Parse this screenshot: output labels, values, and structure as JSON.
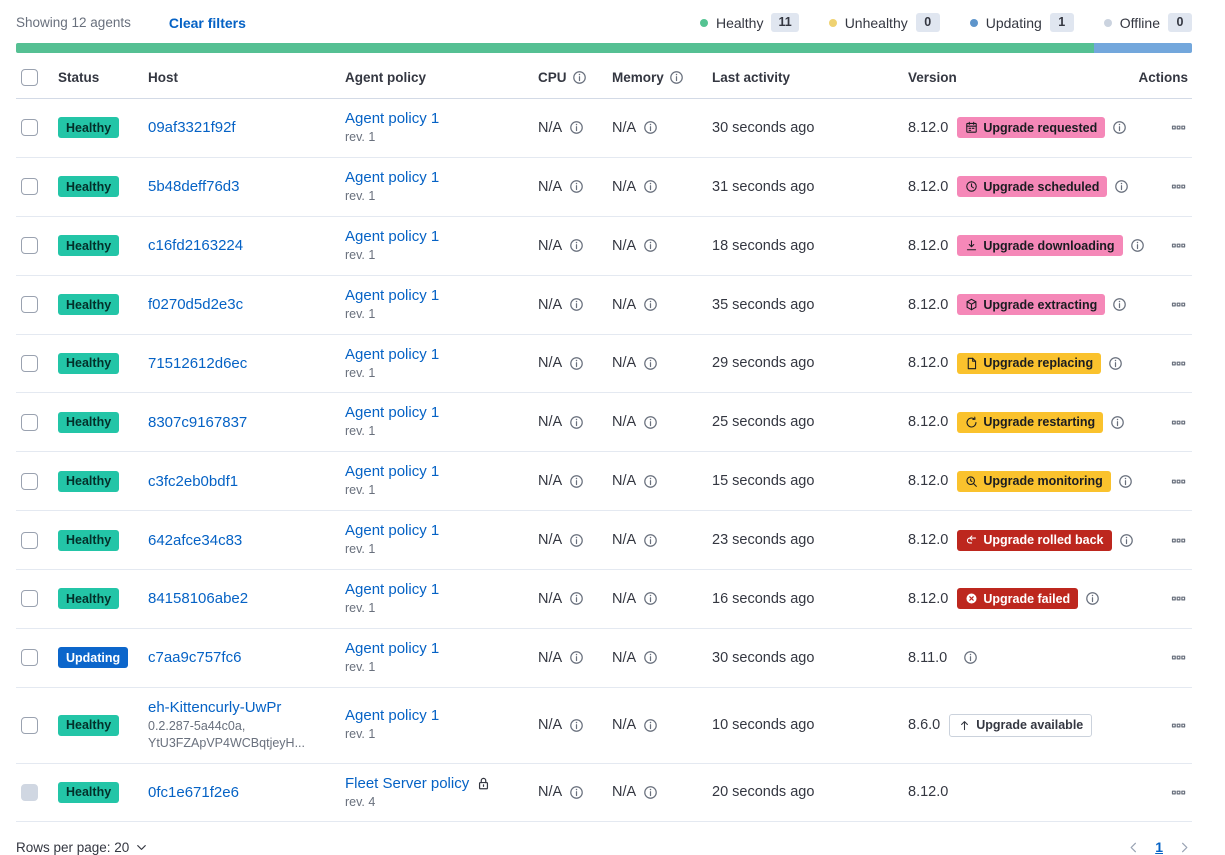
{
  "toolbar": {
    "showing": "Showing 12 agents",
    "clear_filters": "Clear filters",
    "legend": [
      {
        "label": "Healthy",
        "count": "11",
        "dot_color_key": "dot_healthy"
      },
      {
        "label": "Unhealthy",
        "count": "0",
        "dot_color_key": "dot_unhealthy"
      },
      {
        "label": "Updating",
        "count": "1",
        "dot_color_key": "dot_updating"
      },
      {
        "label": "Offline",
        "count": "0",
        "dot_color_key": "dot_offline"
      }
    ]
  },
  "status_bar": {
    "segments": [
      {
        "color_key": "bar_green",
        "fraction": 0.9167
      },
      {
        "color_key": "bar_blue",
        "fraction": 0.0833
      }
    ]
  },
  "table": {
    "headers": {
      "status": "Status",
      "host": "Host",
      "policy": "Agent policy",
      "cpu": "CPU",
      "memory": "Memory",
      "last_activity": "Last activity",
      "version": "Version",
      "actions": "Actions"
    },
    "rows": [
      {
        "status": {
          "label": "Healthy",
          "type": "healthy"
        },
        "host": {
          "name": "09af3321f92f"
        },
        "policy": {
          "name": "Agent policy 1",
          "rev": "rev. 1",
          "locked": false
        },
        "cpu": "N/A",
        "memory": "N/A",
        "last_activity": "30 seconds ago",
        "version": "8.12.0",
        "badge": {
          "label": "Upgrade requested",
          "icon": "calendar-icon",
          "style": "pink"
        },
        "info_after_badge": true,
        "info_after_version": false,
        "checkbox_disabled": false
      },
      {
        "status": {
          "label": "Healthy",
          "type": "healthy"
        },
        "host": {
          "name": "5b48deff76d3"
        },
        "policy": {
          "name": "Agent policy 1",
          "rev": "rev. 1",
          "locked": false
        },
        "cpu": "N/A",
        "memory": "N/A",
        "last_activity": "31 seconds ago",
        "version": "8.12.0",
        "badge": {
          "label": "Upgrade scheduled",
          "icon": "clock-icon",
          "style": "pink"
        },
        "info_after_badge": true,
        "info_after_version": false,
        "checkbox_disabled": false
      },
      {
        "status": {
          "label": "Healthy",
          "type": "healthy"
        },
        "host": {
          "name": "c16fd2163224"
        },
        "policy": {
          "name": "Agent policy 1",
          "rev": "rev. 1",
          "locked": false
        },
        "cpu": "N/A",
        "memory": "N/A",
        "last_activity": "18 seconds ago",
        "version": "8.12.0",
        "badge": {
          "label": "Upgrade downloading",
          "icon": "download-icon",
          "style": "pink"
        },
        "info_after_badge": true,
        "info_after_version": false,
        "checkbox_disabled": false
      },
      {
        "status": {
          "label": "Healthy",
          "type": "healthy"
        },
        "host": {
          "name": "f0270d5d2e3c"
        },
        "policy": {
          "name": "Agent policy 1",
          "rev": "rev. 1",
          "locked": false
        },
        "cpu": "N/A",
        "memory": "N/A",
        "last_activity": "35 seconds ago",
        "version": "8.12.0",
        "badge": {
          "label": "Upgrade extracting",
          "icon": "package-icon",
          "style": "pink"
        },
        "info_after_badge": true,
        "info_after_version": false,
        "checkbox_disabled": false
      },
      {
        "status": {
          "label": "Healthy",
          "type": "healthy"
        },
        "host": {
          "name": "71512612d6ec"
        },
        "policy": {
          "name": "Agent policy 1",
          "rev": "rev. 1",
          "locked": false
        },
        "cpu": "N/A",
        "memory": "N/A",
        "last_activity": "29 seconds ago",
        "version": "8.12.0",
        "badge": {
          "label": "Upgrade replacing",
          "icon": "document-icon",
          "style": "yellow"
        },
        "info_after_badge": true,
        "info_after_version": false,
        "checkbox_disabled": false
      },
      {
        "status": {
          "label": "Healthy",
          "type": "healthy"
        },
        "host": {
          "name": "8307c9167837"
        },
        "policy": {
          "name": "Agent policy 1",
          "rev": "rev. 1",
          "locked": false
        },
        "cpu": "N/A",
        "memory": "N/A",
        "last_activity": "25 seconds ago",
        "version": "8.12.0",
        "badge": {
          "label": "Upgrade restarting",
          "icon": "refresh-icon",
          "style": "yellow"
        },
        "info_after_badge": true,
        "info_after_version": false,
        "checkbox_disabled": false
      },
      {
        "status": {
          "label": "Healthy",
          "type": "healthy"
        },
        "host": {
          "name": "c3fc2eb0bdf1"
        },
        "policy": {
          "name": "Agent policy 1",
          "rev": "rev. 1",
          "locked": false
        },
        "cpu": "N/A",
        "memory": "N/A",
        "last_activity": "15 seconds ago",
        "version": "8.12.0",
        "badge": {
          "label": "Upgrade monitoring",
          "icon": "inspect-icon",
          "style": "yellow"
        },
        "info_after_badge": true,
        "info_after_version": false,
        "checkbox_disabled": false
      },
      {
        "status": {
          "label": "Healthy",
          "type": "healthy"
        },
        "host": {
          "name": "642afce34c83"
        },
        "policy": {
          "name": "Agent policy 1",
          "rev": "rev. 1",
          "locked": false
        },
        "cpu": "N/A",
        "memory": "N/A",
        "last_activity": "23 seconds ago",
        "version": "8.12.0",
        "badge": {
          "label": "Upgrade rolled back",
          "icon": "return-icon",
          "style": "red"
        },
        "info_after_badge": true,
        "info_after_version": false,
        "checkbox_disabled": false
      },
      {
        "status": {
          "label": "Healthy",
          "type": "healthy"
        },
        "host": {
          "name": "84158106abe2"
        },
        "policy": {
          "name": "Agent policy 1",
          "rev": "rev. 1",
          "locked": false
        },
        "cpu": "N/A",
        "memory": "N/A",
        "last_activity": "16 seconds ago",
        "version": "8.12.0",
        "badge": {
          "label": "Upgrade failed",
          "icon": "error-icon",
          "style": "red"
        },
        "info_after_badge": true,
        "info_after_version": false,
        "checkbox_disabled": false
      },
      {
        "status": {
          "label": "Updating",
          "type": "updating"
        },
        "host": {
          "name": "c7aa9c757fc6"
        },
        "policy": {
          "name": "Agent policy 1",
          "rev": "rev. 1",
          "locked": false
        },
        "cpu": "N/A",
        "memory": "N/A",
        "last_activity": "30 seconds ago",
        "version": "8.11.0",
        "badge": null,
        "info_after_badge": false,
        "info_after_version": true,
        "checkbox_disabled": false
      },
      {
        "status": {
          "label": "Healthy",
          "type": "healthy"
        },
        "host": {
          "name": "eh-Kittencurly-UwPr",
          "sub": "0.2.287-5a44c0a, YtU3FZApVP4WCBqtjeyH..."
        },
        "policy": {
          "name": "Agent policy 1",
          "rev": "rev. 1",
          "locked": false
        },
        "cpu": "N/A",
        "memory": "N/A",
        "last_activity": "10 seconds ago",
        "version": "8.6.0",
        "badge": {
          "label": "Upgrade available",
          "icon": "up-arrow-icon",
          "style": "outline"
        },
        "info_after_badge": false,
        "info_after_version": false,
        "checkbox_disabled": false
      },
      {
        "status": {
          "label": "Healthy",
          "type": "healthy"
        },
        "host": {
          "name": "0fc1e671f2e6"
        },
        "policy": {
          "name": "Fleet Server policy",
          "rev": "rev. 4",
          "locked": true
        },
        "cpu": "N/A",
        "memory": "N/A",
        "last_activity": "20 seconds ago",
        "version": "8.12.0",
        "badge": null,
        "info_after_badge": false,
        "info_after_version": false,
        "checkbox_disabled": true
      }
    ]
  },
  "pagination": {
    "rows_per_page": "Rows per page: 20",
    "current_page": "1"
  },
  "colors": {
    "accent_pink": "#F588B8",
    "warning_yellow": "#FAC22D",
    "danger_red": "#BD271E",
    "healthy_teal": "#23C5A7",
    "healthy_text": "#03302A",
    "updating_blue": "#0C66CB",
    "link_blue": "#0562C5",
    "text_dark": "#343741",
    "text_subdued": "#69707D",
    "border_light": "#E4E9F1",
    "border_header": "#D3DAE6",
    "bar_green": "#55C093",
    "bar_blue": "#73A7DC",
    "dot_healthy": "#54C392",
    "dot_unhealthy": "#EFD271",
    "dot_updating": "#5E95CB",
    "dot_offline": "#CBD3DF",
    "count_badge_bg": "#E0E6F0",
    "outline_border": "#CBD2DC",
    "icon_gray": "#69707D",
    "pager_chevron": "#98A2B3",
    "checkbox_border": "#9AA2B0",
    "checkbox_disabled_bg": "#D0D7E2"
  }
}
